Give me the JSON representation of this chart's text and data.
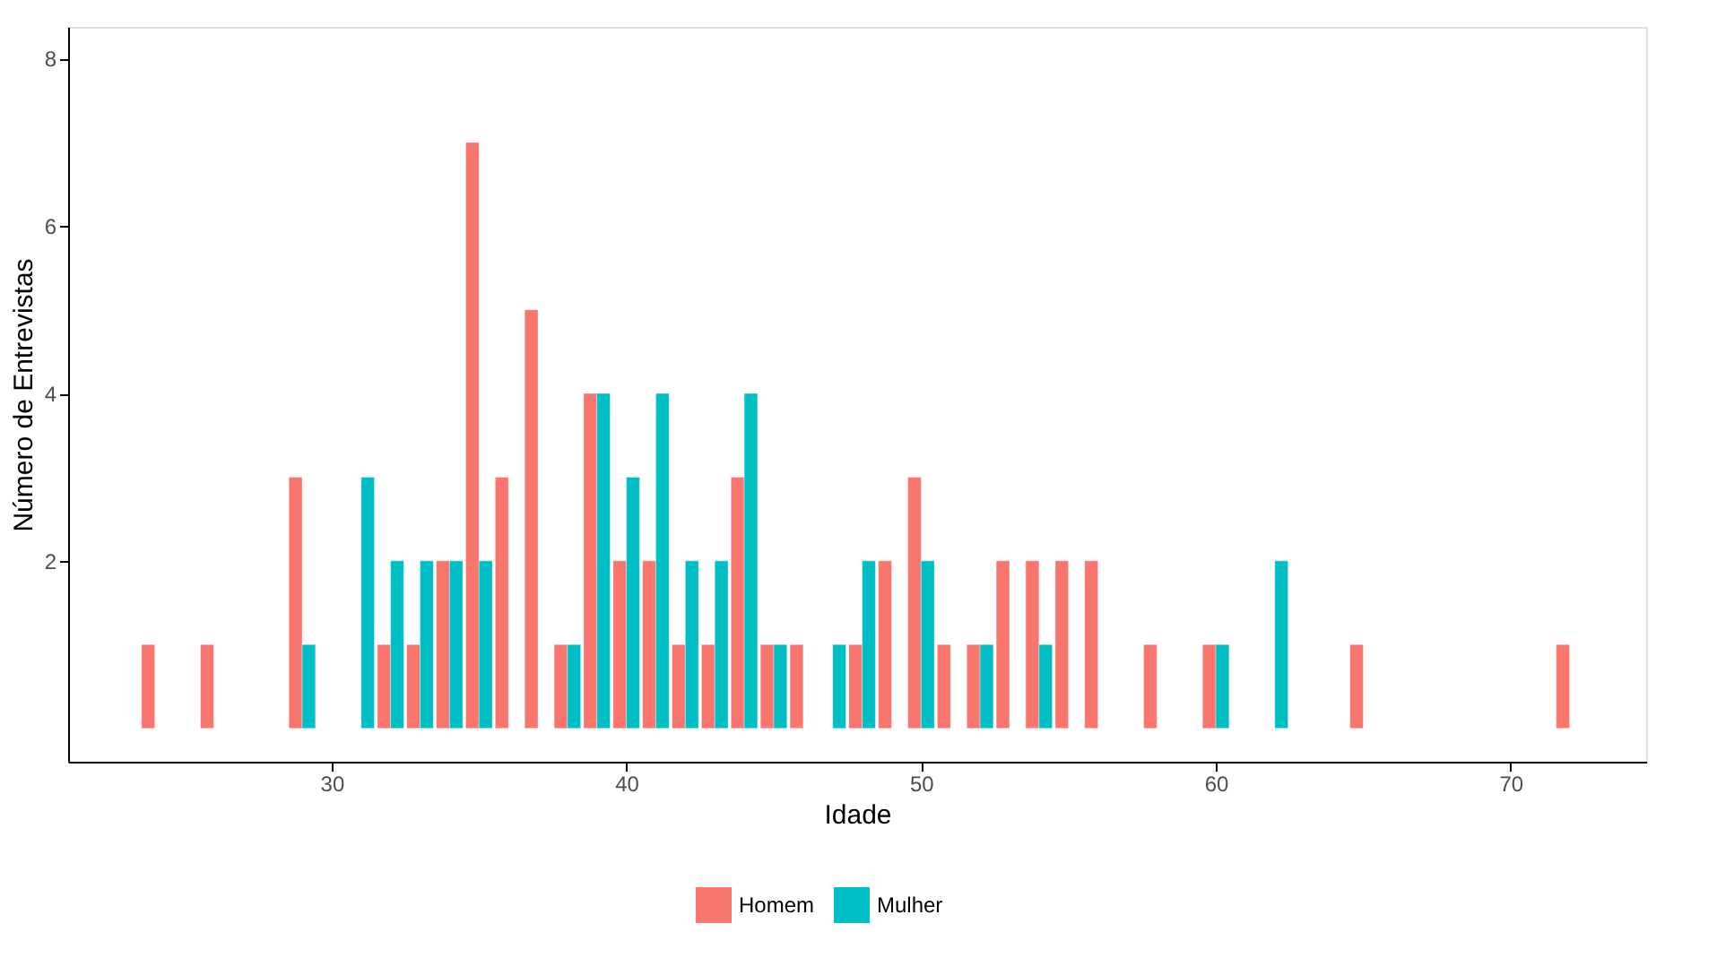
{
  "chart_data": {
    "type": "bar",
    "xlabel": "Idade",
    "ylabel": "Número de Entrevistas",
    "xlim": [
      21.06,
      74.6
    ],
    "xticks": [
      30,
      40,
      50,
      60,
      70
    ],
    "ylim": [
      -0.4,
      8.38
    ],
    "yticks": [
      2,
      4,
      6,
      8
    ],
    "grid": false,
    "legend": "bottom",
    "series": [
      {
        "name": "Homem",
        "color": "#f8766d",
        "x": [
          24,
          26,
          29,
          32,
          33,
          34,
          35,
          36,
          37,
          38,
          39,
          40,
          41,
          42,
          43,
          44,
          45,
          46,
          48,
          49,
          50,
          51,
          52,
          53,
          54,
          55,
          56,
          58,
          60,
          65,
          72
        ],
        "values": [
          1,
          1,
          3,
          1,
          1,
          2,
          7,
          3,
          5,
          1,
          4,
          2,
          2,
          1,
          1,
          3,
          1,
          1,
          1,
          2,
          3,
          1,
          1,
          2,
          2,
          2,
          2,
          1,
          1,
          1,
          1
        ]
      },
      {
        "name": "Mulher",
        "color": "#00bfc4",
        "x": [
          29,
          31,
          32,
          33,
          34,
          35,
          38,
          39,
          40,
          41,
          42,
          43,
          44,
          45,
          47,
          48,
          50,
          52,
          54,
          60,
          62
        ],
        "values": [
          1,
          3,
          2,
          2,
          2,
          2,
          1,
          4,
          3,
          4,
          2,
          2,
          4,
          1,
          1,
          2,
          2,
          1,
          1,
          1,
          2
        ]
      }
    ]
  }
}
